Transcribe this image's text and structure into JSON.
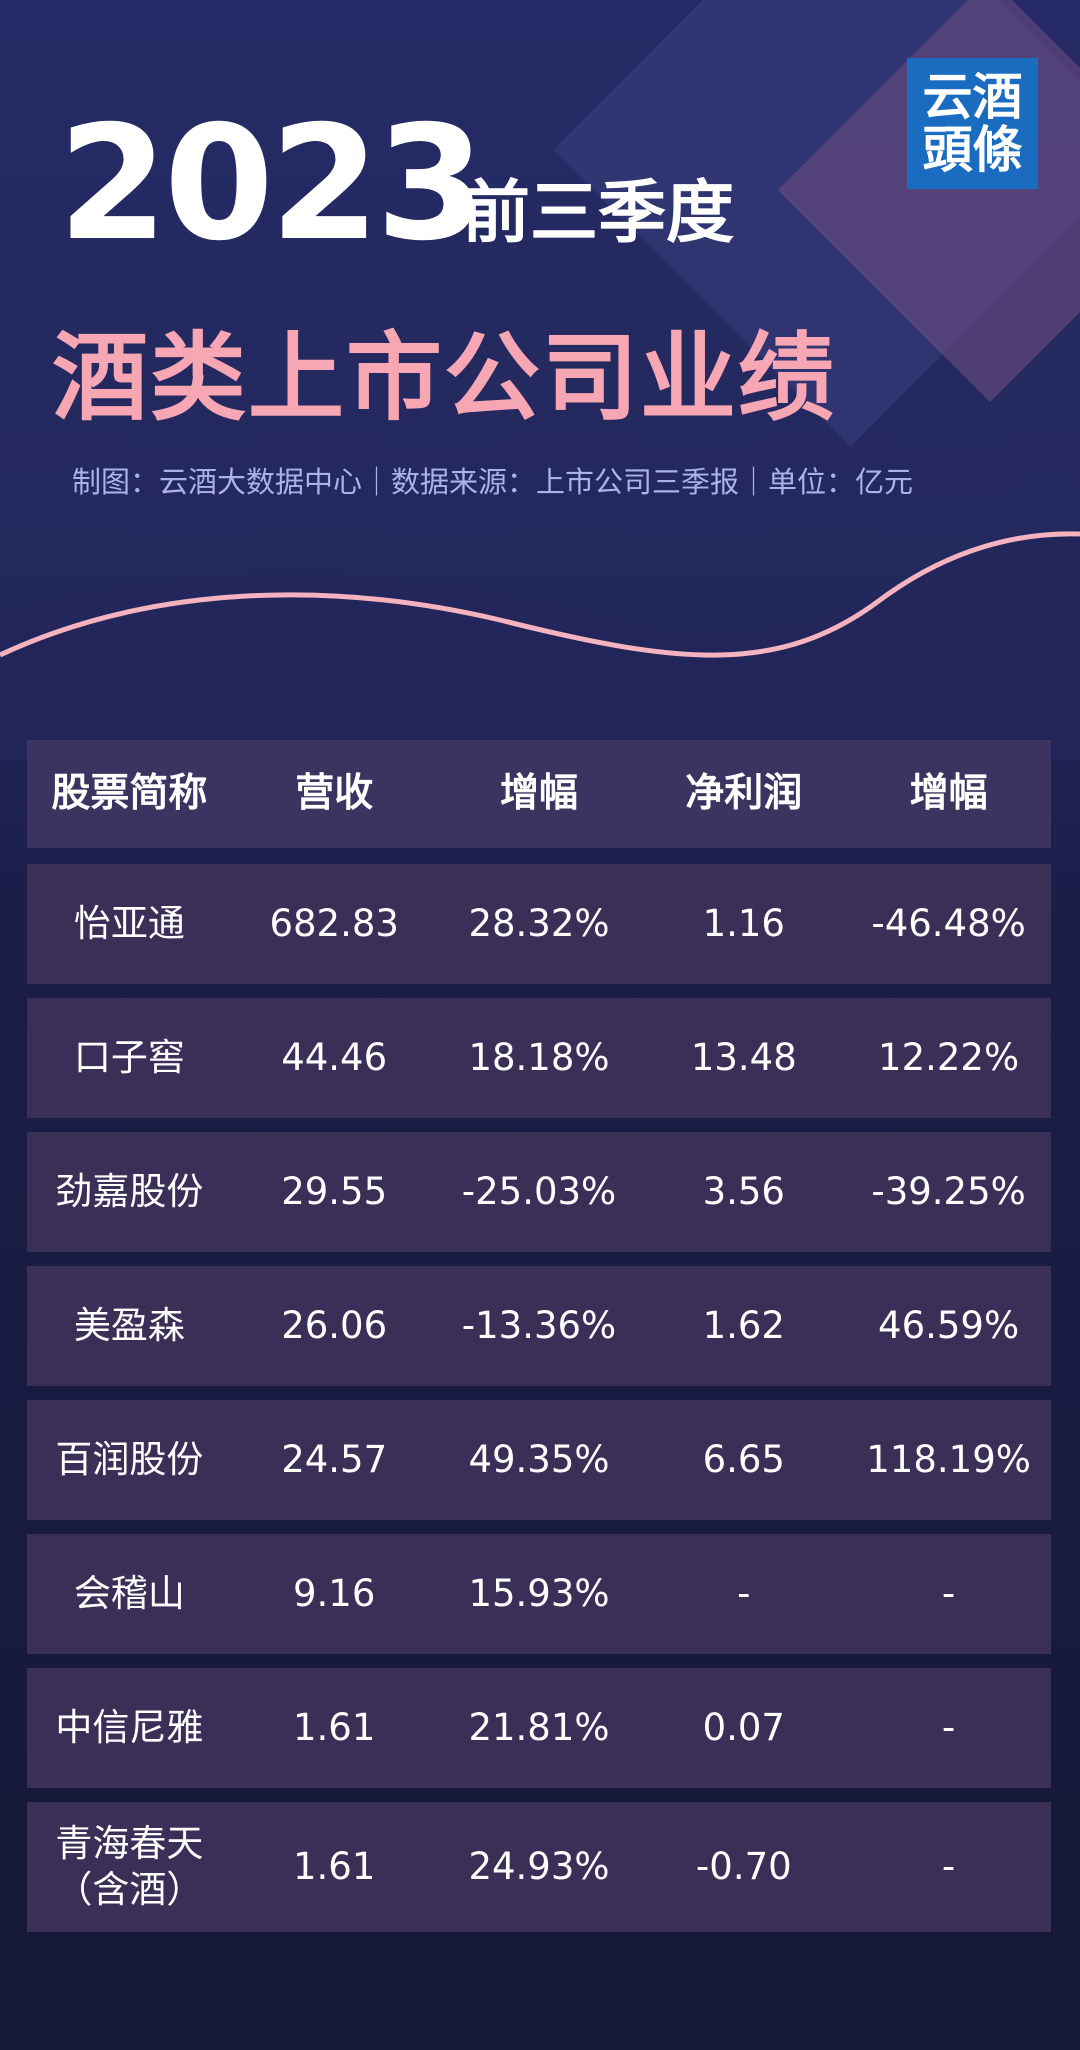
{
  "header": {
    "year": "2023",
    "subtitle": "前三季度",
    "title": "酒类上市公司业绩",
    "source": "制图：云酒大数据中心｜数据来源：上市公司三季报｜单位：亿元"
  },
  "logo": {
    "line1": "云酒",
    "line2": "頭條"
  },
  "table": {
    "columns": [
      "股票简称",
      "营收",
      "增幅",
      "净利润",
      "增幅"
    ],
    "rows": [
      [
        "怡亚通",
        "682.83",
        "28.32%",
        "1.16",
        "-46.48%"
      ],
      [
        "口子窖",
        "44.46",
        "18.18%",
        "13.48",
        "12.22%"
      ],
      [
        "劲嘉股份",
        "29.55",
        "-25.03%",
        "3.56",
        "-39.25%"
      ],
      [
        "美盈森",
        "26.06",
        "-13.36%",
        "1.62",
        "46.59%"
      ],
      [
        "百润股份",
        "24.57",
        "49.35%",
        "6.65",
        "118.19%"
      ],
      [
        "会稽山",
        "9.16",
        "15.93%",
        "-",
        "-"
      ],
      [
        "中信尼雅",
        "1.61",
        "21.81%",
        "0.07",
        "-"
      ],
      [
        "青海春天\n（含酒）",
        "1.61",
        "24.93%",
        "-0.70",
        "-"
      ]
    ]
  }
}
